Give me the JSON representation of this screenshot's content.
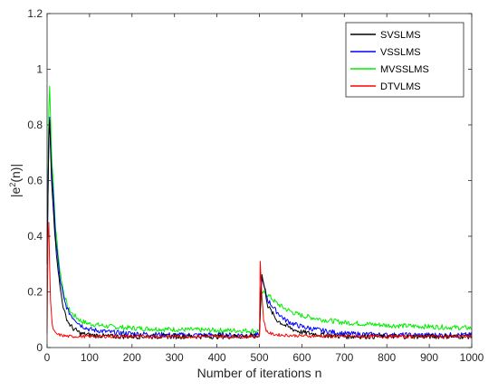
{
  "chart_data": {
    "type": "line",
    "title": "",
    "xlabel": "Number of iterations n",
    "ylabel": "|e²(n)|",
    "ylabel_base": "|e",
    "ylabel_sup": "2",
    "ylabel_rest": "(n)|",
    "xlim": [
      0,
      1000
    ],
    "ylim": [
      0,
      1.2
    ],
    "xticks": [
      0,
      100,
      200,
      300,
      400,
      500,
      600,
      700,
      800,
      900,
      1000
    ],
    "yticks": [
      0,
      0.2,
      0.4,
      0.6,
      0.8,
      1,
      1.2
    ],
    "xtick_labels": [
      "0",
      "100",
      "200",
      "300",
      "400",
      "500",
      "600",
      "700",
      "800",
      "900",
      "1000"
    ],
    "ytick_labels": [
      "0",
      "0.2",
      "0.4",
      "0.6",
      "0.8",
      "1",
      "1.2"
    ],
    "grid": false,
    "legend_position": "top-right",
    "series": [
      {
        "name": "SVSLMS",
        "color": "#000000",
        "x": [
          0,
          5,
          10,
          20,
          30,
          40,
          50,
          60,
          80,
          100,
          150,
          200,
          300,
          400,
          498,
          500,
          505,
          520,
          540,
          560,
          580,
          600,
          650,
          700,
          800,
          900,
          1000
        ],
        "y": [
          0.3,
          0.86,
          0.62,
          0.37,
          0.22,
          0.13,
          0.09,
          0.07,
          0.05,
          0.045,
          0.04,
          0.04,
          0.04,
          0.04,
          0.04,
          0.04,
          0.27,
          0.15,
          0.1,
          0.08,
          0.065,
          0.055,
          0.045,
          0.04,
          0.04,
          0.04,
          0.04
        ]
      },
      {
        "name": "VSSLMS",
        "color": "#0000ff",
        "x": [
          0,
          5,
          10,
          20,
          30,
          40,
          50,
          60,
          80,
          100,
          150,
          200,
          300,
          400,
          498,
          500,
          505,
          520,
          540,
          560,
          580,
          600,
          650,
          700,
          800,
          900,
          1000
        ],
        "y": [
          0.3,
          0.86,
          0.66,
          0.4,
          0.25,
          0.17,
          0.13,
          0.11,
          0.08,
          0.065,
          0.055,
          0.05,
          0.045,
          0.045,
          0.045,
          0.045,
          0.25,
          0.17,
          0.13,
          0.1,
          0.085,
          0.075,
          0.06,
          0.05,
          0.045,
          0.045,
          0.045
        ]
      },
      {
        "name": "MVSSLMS",
        "color": "#00ee00",
        "x": [
          0,
          5,
          10,
          20,
          30,
          40,
          50,
          60,
          80,
          100,
          150,
          200,
          300,
          400,
          498,
          500,
          505,
          520,
          540,
          560,
          580,
          600,
          650,
          700,
          800,
          900,
          1000
        ],
        "y": [
          0.3,
          1.0,
          0.72,
          0.43,
          0.28,
          0.19,
          0.14,
          0.12,
          0.095,
          0.085,
          0.075,
          0.07,
          0.065,
          0.062,
          0.06,
          0.06,
          0.2,
          0.19,
          0.16,
          0.14,
          0.125,
          0.115,
          0.1,
          0.09,
          0.08,
          0.075,
          0.07
        ]
      },
      {
        "name": "DTVLMS",
        "color": "#ff0000",
        "x": [
          0,
          3,
          5,
          8,
          12,
          16,
          20,
          30,
          50,
          100,
          200,
          300,
          400,
          498,
          500,
          502,
          505,
          510,
          515,
          520,
          530,
          550,
          600,
          700,
          800,
          900,
          1000
        ],
        "y": [
          0.05,
          0.55,
          0.36,
          0.17,
          0.08,
          0.06,
          0.05,
          0.045,
          0.04,
          0.04,
          0.04,
          0.04,
          0.04,
          0.04,
          0.04,
          0.31,
          0.2,
          0.1,
          0.065,
          0.055,
          0.048,
          0.045,
          0.042,
          0.04,
          0.04,
          0.04,
          0.04
        ]
      }
    ]
  }
}
